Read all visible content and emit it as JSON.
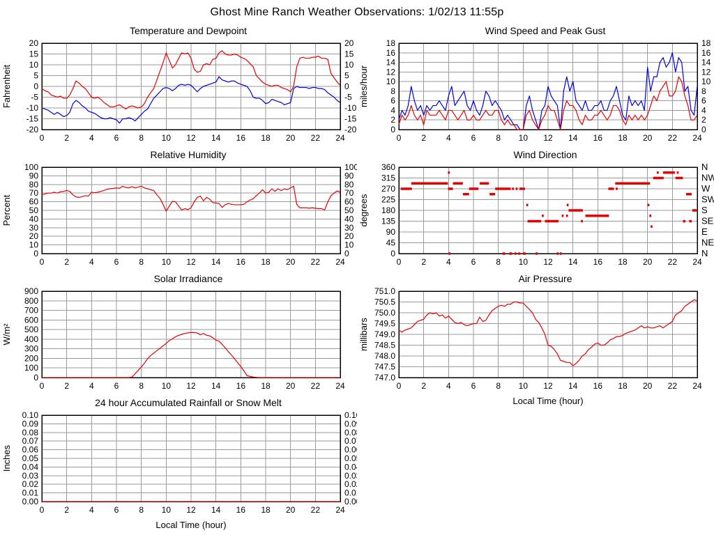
{
  "page_title": "Ghost Mine Ranch Weather Observations: 1/02/13 11:55p",
  "colors": {
    "red": "#e60000",
    "blue": "#0000e0",
    "grid": "#999999",
    "axis": "#000000"
  },
  "chart_data": [
    {
      "id": "temperature-dewpoint",
      "type": "line",
      "title": "Temperature and Dewpoint",
      "ylabel": "Fahrenheit",
      "ylim": [
        -20,
        20
      ],
      "ytick_step": 5,
      "ydecimals": 0,
      "xlim": [
        0,
        24
      ],
      "xtick_step": 2,
      "right_ticks": "mirror",
      "x_step": 0.25,
      "series": [
        {
          "name": "temperature",
          "color": "red",
          "values": [
            -1,
            -2,
            -2.5,
            -4,
            -4.5,
            -5,
            -4.5,
            -5.5,
            -5.5,
            -4,
            -1,
            2.5,
            1.5,
            0,
            -1,
            -3,
            -5,
            -5.5,
            -5,
            -6,
            -7.5,
            -8.5,
            -9.5,
            -9.5,
            -9,
            -8.5,
            -9.5,
            -10.5,
            -9.5,
            -9,
            -9.5,
            -10,
            -9.5,
            -8,
            -5,
            -3,
            -1,
            3,
            7,
            11,
            15.5,
            12,
            8.5,
            10,
            13,
            15.5,
            15,
            15.5,
            13,
            8,
            6.5,
            7,
            10,
            10.5,
            10,
            12.5,
            13,
            15.5,
            16.5,
            15,
            14.5,
            14.5,
            15,
            14.5,
            13.5,
            13,
            12,
            10.5,
            9,
            5,
            3.5,
            2,
            1,
            0.5,
            0,
            0.5,
            0.5,
            -0.5,
            -1,
            -1.5,
            -2.5,
            0,
            9,
            13,
            13.5,
            13,
            13,
            13.5,
            13.5,
            14,
            13,
            13,
            12.5,
            6,
            4,
            2,
            0.5
          ]
        },
        {
          "name": "dewpoint",
          "color": "blue",
          "values": [
            -10,
            -10.5,
            -11,
            -12,
            -13,
            -12,
            -13,
            -14,
            -13.5,
            -12,
            -8,
            -6.5,
            -7.5,
            -9,
            -10,
            -11.5,
            -12,
            -12.5,
            -13.5,
            -14.5,
            -15,
            -15,
            -14.5,
            -15,
            -15.5,
            -17,
            -15,
            -15,
            -14.5,
            -15,
            -16,
            -14.5,
            -13,
            -11.5,
            -10.5,
            -8,
            -5.5,
            -4,
            -2.5,
            -1,
            -0.5,
            -1,
            -2,
            -1,
            0.5,
            1,
            0.5,
            1,
            0.5,
            -1,
            -2.5,
            -1,
            0,
            0.5,
            1,
            1.5,
            2,
            4.5,
            3,
            2.5,
            2,
            2.5,
            2.5,
            1.5,
            1,
            0.5,
            0,
            -2,
            -5,
            -5.5,
            -5.5,
            -6.5,
            -8,
            -7.5,
            -6,
            -6.5,
            -7,
            -7.5,
            -8.5,
            -8,
            -7.5,
            -1,
            0,
            -0.5,
            -0.5,
            -0.5,
            -1,
            -0.5,
            -0.5,
            -1,
            -1,
            -1.5,
            -3,
            -4,
            -5,
            -6.5,
            -7.5
          ]
        }
      ]
    },
    {
      "id": "wind-speed-gust",
      "type": "line",
      "title": "Wind Speed and Peak Gust",
      "ylabel": "miles/hour",
      "ylim": [
        0,
        18
      ],
      "ytick_step": 2,
      "ydecimals": 0,
      "xlim": [
        0,
        24
      ],
      "xtick_step": 2,
      "right_ticks": "mirror",
      "x_step": 0.25,
      "series": [
        {
          "name": "peak-gust",
          "color": "blue",
          "values": [
            2,
            4,
            3,
            5,
            9,
            6,
            4,
            5,
            3,
            5,
            4,
            5,
            5,
            6,
            5,
            4,
            7,
            9,
            5,
            6,
            7,
            8,
            5,
            4,
            6,
            4,
            3,
            5,
            8,
            7,
            5,
            6,
            5,
            4,
            2,
            3,
            2,
            1,
            1,
            0,
            0,
            5,
            7,
            4,
            2,
            0,
            4,
            5,
            9,
            7,
            6,
            5,
            0,
            8,
            11,
            8,
            10,
            6,
            5,
            4,
            6,
            4,
            4,
            5,
            5,
            6,
            4,
            4,
            6,
            7,
            9,
            6,
            3,
            2,
            7,
            5,
            6,
            5,
            6,
            4,
            13,
            8,
            11,
            11,
            14,
            15,
            13,
            14,
            16,
            12,
            15,
            14,
            8,
            9,
            4,
            3,
            9
          ]
        },
        {
          "name": "wind-speed",
          "color": "red",
          "values": [
            1,
            3,
            2,
            3,
            5,
            3,
            2,
            3,
            1,
            4,
            3,
            3,
            3,
            4,
            3,
            2,
            4,
            4,
            3,
            2,
            3,
            4,
            2,
            2,
            3,
            2,
            2,
            3,
            4,
            3,
            3,
            4,
            4,
            2,
            1,
            2,
            1,
            1,
            0,
            0,
            0,
            3,
            4,
            2,
            1,
            0,
            2,
            3,
            5,
            4,
            4,
            2,
            0,
            4,
            6,
            5,
            5,
            4,
            2,
            1,
            3,
            2,
            2,
            3,
            3,
            4,
            3,
            2,
            3,
            5,
            5,
            4,
            2,
            1,
            3,
            2,
            3,
            2,
            3,
            2,
            3,
            5,
            7,
            6,
            8,
            9,
            10,
            7,
            7,
            8,
            11,
            10,
            7,
            5,
            2,
            2,
            3
          ]
        }
      ]
    },
    {
      "id": "relative-humidity",
      "type": "line",
      "title": "Relative Humidity",
      "ylabel": "Percent",
      "ylim": [
        0,
        100
      ],
      "ytick_step": 10,
      "ydecimals": 0,
      "xlim": [
        0,
        24
      ],
      "xtick_step": 2,
      "right_ticks": "mirror",
      "x_step": 0.25,
      "series": [
        {
          "name": "humidity",
          "color": "red",
          "values": [
            68,
            69,
            70,
            70,
            71,
            70,
            71.5,
            72,
            73,
            72,
            68,
            65.5,
            65,
            66,
            67,
            66.5,
            71,
            70.5,
            71,
            72,
            73,
            74.5,
            75,
            75.5,
            76,
            75.5,
            78,
            76.5,
            76,
            77.5,
            76,
            77,
            78,
            76,
            75,
            74,
            73,
            68,
            64,
            57,
            49,
            55,
            60.5,
            60,
            55,
            50.5,
            52,
            51,
            53,
            60,
            65,
            66.5,
            61,
            65,
            63,
            59,
            58.5,
            58,
            53.5,
            56.5,
            58,
            57,
            56.5,
            56.5,
            56.5,
            57,
            60,
            62,
            63.5,
            67,
            70,
            74,
            70,
            71,
            75,
            72,
            75,
            73,
            75,
            74,
            76,
            78,
            57,
            53,
            53,
            53,
            52.5,
            53,
            52.5,
            52,
            52,
            50.5,
            60,
            67,
            70,
            72.5,
            71
          ]
        }
      ]
    },
    {
      "id": "wind-direction",
      "type": "segments",
      "title": "Wind Direction",
      "ylabel": "degrees",
      "ylim": [
        0,
        360
      ],
      "ytick_step": 45,
      "ydecimals": 0,
      "xlim": [
        0,
        24
      ],
      "xtick_step": 2,
      "right_ticks": [
        "N",
        "NE",
        "E",
        "SE",
        "S",
        "SW",
        "W",
        "NW",
        "N"
      ],
      "series": [
        {
          "name": "wind-direction",
          "color": "red",
          "segments": [
            [
              0.15,
              1.05,
              270
            ],
            [
              1.0,
              3.95,
              292.5
            ],
            [
              3.95,
              4.1,
              337.5
            ],
            [
              3.95,
              4.35,
              270
            ],
            [
              4.0,
              4.15,
              0
            ],
            [
              4.35,
              5.15,
              292.5
            ],
            [
              5.15,
              5.65,
              247.5
            ],
            [
              5.65,
              6.4,
              270
            ],
            [
              6.5,
              7.25,
              292.5
            ],
            [
              7.3,
              7.75,
              247.5
            ],
            [
              7.75,
              9.0,
              270
            ],
            [
              9.1,
              9.25,
              270
            ],
            [
              9.4,
              9.55,
              270
            ],
            [
              9.7,
              10.15,
              270
            ],
            [
              8.35,
              8.55,
              0
            ],
            [
              8.9,
              9.1,
              0
            ],
            [
              9.3,
              9.45,
              0
            ],
            [
              9.6,
              9.75,
              0
            ],
            [
              10.0,
              10.2,
              0
            ],
            [
              10.25,
              10.4,
              202.5
            ],
            [
              10.35,
              11.45,
              135
            ],
            [
              11.0,
              11.15,
              0
            ],
            [
              11.5,
              11.65,
              157.5
            ],
            [
              11.75,
              12.85,
              135
            ],
            [
              12.7,
              12.85,
              0
            ],
            [
              12.95,
              13.1,
              0
            ],
            [
              13.1,
              13.25,
              157.5
            ],
            [
              13.45,
              13.6,
              157.5
            ],
            [
              13.5,
              13.65,
              202.5
            ],
            [
              13.65,
              14.8,
              180
            ],
            [
              14.65,
              14.8,
              135
            ],
            [
              15.0,
              16.9,
              157.5
            ],
            [
              16.85,
              17.3,
              270
            ],
            [
              17.45,
              17.6,
              270
            ],
            [
              17.4,
              20.2,
              292.5
            ],
            [
              20.0,
              20.15,
              202.5
            ],
            [
              20.15,
              20.3,
              157.5
            ],
            [
              20.25,
              20.4,
              112.5
            ],
            [
              20.45,
              21.3,
              315
            ],
            [
              20.75,
              20.9,
              337.5
            ],
            [
              21.25,
              22.2,
              337.5
            ],
            [
              22.35,
              22.5,
              337.5
            ],
            [
              22.25,
              22.85,
              315
            ],
            [
              22.85,
              23.05,
              135
            ],
            [
              23.35,
              23.55,
              135
            ],
            [
              23.1,
              23.55,
              247.5
            ],
            [
              23.6,
              23.95,
              180
            ]
          ]
        }
      ]
    },
    {
      "id": "solar-irradiance",
      "type": "line",
      "title": "Solar Irradiance",
      "ylabel": "W/m²",
      "ylim": [
        0,
        900
      ],
      "ytick_step": 100,
      "ydecimals": 0,
      "xlim": [
        0,
        24
      ],
      "xtick_step": 2,
      "right_ticks": "none",
      "x_step": 0.25,
      "series": [
        {
          "name": "irradiance",
          "color": "red",
          "values": [
            0,
            0,
            0,
            0,
            0,
            0,
            0,
            0,
            0,
            0,
            0,
            0,
            0,
            0,
            0,
            0,
            0,
            0,
            0,
            0,
            0,
            0,
            0,
            0,
            0,
            0,
            0,
            0,
            0,
            5,
            40,
            75,
            110,
            150,
            195,
            230,
            255,
            280,
            305,
            330,
            355,
            385,
            405,
            425,
            440,
            450,
            460,
            465,
            470,
            468,
            465,
            445,
            460,
            440,
            435,
            415,
            390,
            380,
            345,
            310,
            270,
            235,
            195,
            155,
            115,
            70,
            20,
            12,
            6,
            2,
            0,
            0,
            0,
            0,
            0,
            0,
            0,
            0,
            0,
            0,
            0,
            0,
            0,
            0,
            0,
            0,
            0,
            0,
            0,
            0,
            0,
            0,
            0,
            0,
            0,
            0,
            0
          ]
        }
      ]
    },
    {
      "id": "air-pressure",
      "type": "line",
      "title": "Air Pressure",
      "ylabel": "millibars",
      "xlabel": "Local Time (hour)",
      "ylim": [
        747.0,
        751.0
      ],
      "ytick_step": 0.5,
      "ydecimals": 1,
      "xlim": [
        0,
        24
      ],
      "xtick_step": 2,
      "right_ticks": "none",
      "x_step": 0.25,
      "series": [
        {
          "name": "pressure",
          "color": "red",
          "values": [
            749.2,
            749.1,
            749.2,
            749.25,
            749.3,
            749.45,
            749.6,
            749.65,
            749.7,
            749.9,
            750.0,
            749.95,
            750.0,
            749.85,
            749.9,
            749.75,
            749.85,
            749.7,
            749.55,
            749.5,
            749.55,
            749.45,
            749.4,
            749.45,
            749.5,
            749.5,
            749.8,
            749.6,
            749.65,
            749.9,
            750.1,
            750.2,
            750.3,
            750.35,
            750.3,
            750.4,
            750.4,
            750.5,
            750.5,
            750.45,
            750.45,
            750.3,
            750.15,
            750.0,
            749.7,
            749.55,
            749.3,
            749.0,
            748.5,
            748.45,
            748.3,
            748.1,
            747.8,
            747.75,
            747.7,
            747.7,
            747.55,
            747.65,
            747.8,
            748.0,
            748.1,
            748.3,
            748.4,
            748.55,
            748.6,
            748.5,
            748.5,
            748.6,
            748.75,
            748.8,
            748.9,
            748.9,
            748.95,
            749.05,
            749.1,
            749.15,
            749.2,
            749.3,
            749.4,
            749.3,
            749.35,
            749.3,
            749.3,
            749.35,
            749.4,
            749.3,
            749.4,
            749.5,
            749.6,
            749.9,
            750.0,
            750.1,
            750.3,
            750.4,
            750.5,
            750.6,
            750.55
          ]
        }
      ]
    },
    {
      "id": "rainfall",
      "type": "line",
      "title": "24 hour Accumulated Rainfall or Snow Melt",
      "ylabel": "Inches",
      "xlabel": "Local Time (hour)",
      "ylim": [
        0,
        0.1
      ],
      "ytick_step": 0.01,
      "ydecimals": 2,
      "xlim": [
        0,
        24
      ],
      "xtick_step": 2,
      "right_ticks": "mirror",
      "x_step": 24,
      "series": [
        {
          "name": "rainfall",
          "color": "red",
          "values": [
            0,
            0
          ]
        }
      ]
    }
  ]
}
